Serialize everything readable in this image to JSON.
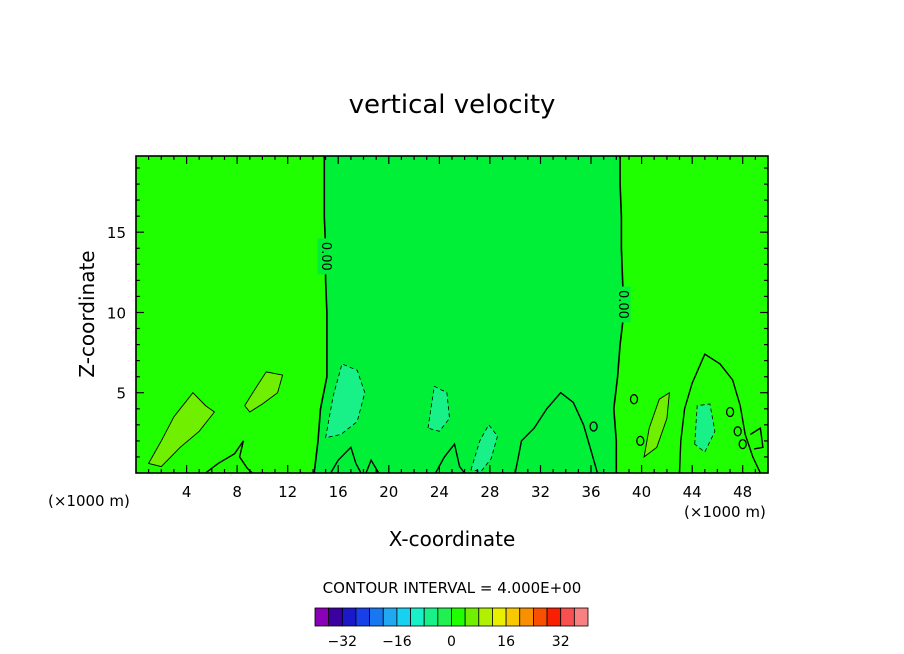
{
  "chart_data": {
    "type": "contour",
    "title": "vertical velocity",
    "xlabel": "X-coordinate",
    "ylabel": "Z-coordinate",
    "x_unit_label": "(×1000 m)",
    "x_unit_label_right": "(×1000 m)",
    "xlim": [
      0,
      50
    ],
    "ylim": [
      0,
      19.75
    ],
    "x_ticks": [
      4,
      8,
      12,
      16,
      20,
      24,
      28,
      32,
      36,
      40,
      44,
      48
    ],
    "y_ticks": [
      5,
      10,
      15
    ],
    "contour_interval_text": "CONTOUR INTERVAL = 4.000E+00",
    "contour_labels": [
      {
        "text": "0.00",
        "x": 15.0,
        "z": 13.5
      },
      {
        "text": "0.00",
        "x": 38.5,
        "z": 10.5
      }
    ],
    "zero_contour_left": [
      [
        14.1,
        0
      ],
      [
        14.4,
        2
      ],
      [
        14.6,
        4
      ],
      [
        15.1,
        6
      ],
      [
        15.1,
        8
      ],
      [
        15.1,
        10
      ],
      [
        15.0,
        12
      ],
      [
        15.0,
        14
      ],
      [
        14.9,
        16
      ],
      [
        14.9,
        18
      ],
      [
        14.9,
        19.75
      ]
    ],
    "zero_contour_right": [
      [
        38.0,
        0
      ],
      [
        38.0,
        2
      ],
      [
        37.8,
        4
      ],
      [
        38.1,
        6
      ],
      [
        38.3,
        8
      ],
      [
        38.6,
        10
      ],
      [
        38.5,
        12
      ],
      [
        38.4,
        14
      ],
      [
        38.4,
        16
      ],
      [
        38.3,
        18
      ],
      [
        38.3,
        19.75
      ]
    ],
    "colorbar": {
      "min": -40,
      "max": 40,
      "step": 4,
      "tick_labels": [
        "-32",
        "-16",
        "0",
        "16",
        "32"
      ],
      "tick_values": [
        -32,
        -16,
        0,
        16,
        32
      ],
      "colors": [
        "#8a00b8",
        "#3c00a0",
        "#1a18c8",
        "#1840e8",
        "#1878f0",
        "#20a8f0",
        "#18d0f0",
        "#18f0c8",
        "#18f088",
        "#20f050",
        "#20ff00",
        "#70f000",
        "#b0f000",
        "#e8f000",
        "#f8c800",
        "#f89000",
        "#f85000",
        "#f82000",
        "#f85050",
        "#f88080"
      ]
    },
    "regions": {
      "field_color": "#20ff00",
      "center_color": "#00f038",
      "light_positive_color": "#70f000",
      "negative_color": "#18f088"
    }
  }
}
